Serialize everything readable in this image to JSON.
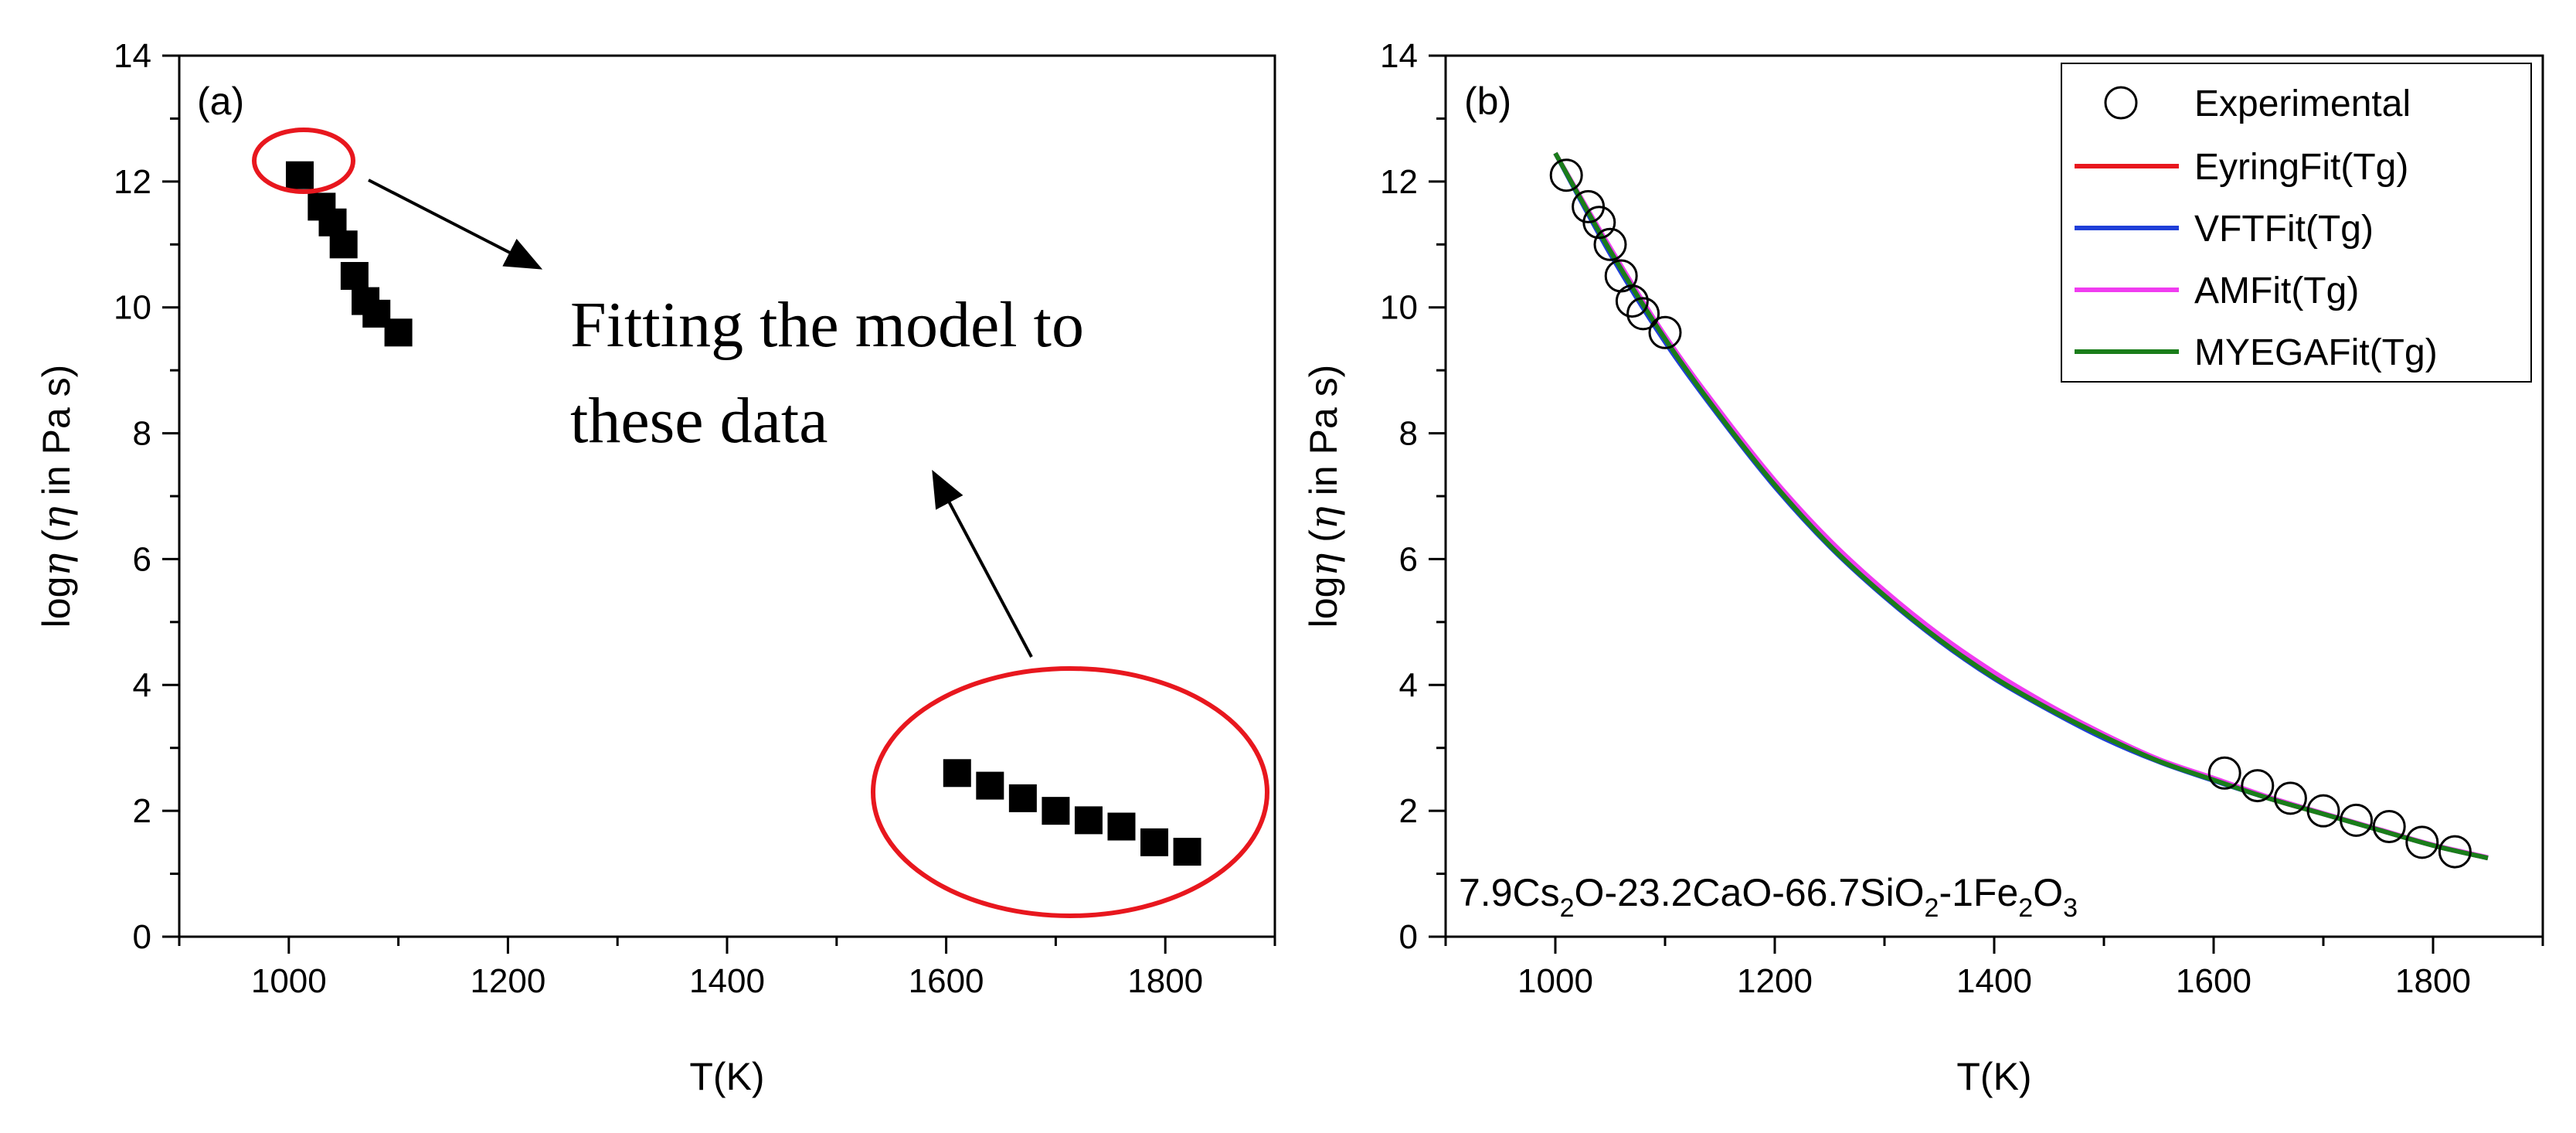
{
  "chart_data": [
    {
      "type": "scatter",
      "panel_label": "(a)",
      "xlabel": "T(K)",
      "ylabel_prefix": "log",
      "ylabel_eta": "η",
      "ylabel_paren_open": " (",
      "ylabel_suffix": " in Pa s)",
      "xlim": [
        900,
        1900
      ],
      "ylim": [
        0,
        14
      ],
      "xticks": [
        1000,
        1200,
        1400,
        1600,
        1800
      ],
      "yticks": [
        0,
        2,
        4,
        6,
        8,
        10,
        12,
        14
      ],
      "grid": false,
      "series": [
        {
          "marker": "filled-square",
          "color": "#000000",
          "x": [
            1010,
            1030,
            1040,
            1050,
            1060,
            1070,
            1080,
            1100,
            1610,
            1640,
            1670,
            1700,
            1730,
            1760,
            1790,
            1820
          ],
          "y": [
            12.1,
            11.6,
            11.35,
            11.0,
            10.5,
            10.1,
            9.9,
            9.6,
            2.6,
            2.4,
            2.2,
            2.0,
            1.85,
            1.75,
            1.5,
            1.35
          ]
        }
      ],
      "annotation": {
        "line1": "Fitting the model to",
        "line2": "these data",
        "highlight_color": "#e8171e"
      }
    },
    {
      "type": "line",
      "panel_label": "(b)",
      "xlabel": "T(K)",
      "ylabel_prefix": "log",
      "ylabel_eta": "η",
      "ylabel_paren_open": " (",
      "ylabel_suffix": " in Pa s)",
      "xlim": [
        900,
        1900
      ],
      "ylim": [
        0,
        14
      ],
      "xticks": [
        1000,
        1200,
        1400,
        1600,
        1800
      ],
      "yticks": [
        0,
        2,
        4,
        6,
        8,
        10,
        12,
        14
      ],
      "grid": false,
      "legend_position": "top-right",
      "experimental": {
        "name": "Experimental",
        "marker": "open-circle",
        "x": [
          1010,
          1030,
          1040,
          1050,
          1060,
          1070,
          1080,
          1100,
          1610,
          1640,
          1670,
          1700,
          1730,
          1760,
          1790,
          1820
        ],
        "y": [
          12.1,
          11.6,
          11.35,
          11.0,
          10.5,
          10.1,
          9.9,
          9.6,
          2.6,
          2.4,
          2.2,
          2.0,
          1.85,
          1.75,
          1.5,
          1.35
        ]
      },
      "series": [
        {
          "name": "EyringFit(Tg)",
          "color": "#e8171e",
          "x": [
            1000,
            1050,
            1100,
            1150,
            1200,
            1250,
            1300,
            1350,
            1400,
            1450,
            1500,
            1550,
            1600,
            1650,
            1700,
            1750,
            1800,
            1850
          ],
          "y": [
            12.45,
            10.9,
            9.5,
            8.3,
            7.2,
            6.25,
            5.45,
            4.75,
            4.15,
            3.65,
            3.2,
            2.8,
            2.5,
            2.2,
            1.95,
            1.7,
            1.45,
            1.25
          ]
        },
        {
          "name": "VFTFit(Tg)",
          "color": "#1f3fd8",
          "x": [
            1000,
            1050,
            1100,
            1150,
            1200,
            1250,
            1300,
            1350,
            1400,
            1450,
            1500,
            1550,
            1600,
            1650,
            1700,
            1750,
            1800,
            1850
          ],
          "y": [
            12.45,
            10.85,
            9.45,
            8.25,
            7.15,
            6.2,
            5.4,
            4.7,
            4.1,
            3.6,
            3.15,
            2.78,
            2.48,
            2.2,
            1.95,
            1.7,
            1.45,
            1.25
          ]
        },
        {
          "name": "AMFit(Tg)",
          "color": "#f03cf0",
          "x": [
            1000,
            1050,
            1100,
            1150,
            1200,
            1250,
            1300,
            1350,
            1400,
            1450,
            1500,
            1550,
            1600,
            1650,
            1700,
            1750,
            1800,
            1850
          ],
          "y": [
            12.45,
            10.95,
            9.55,
            8.35,
            7.25,
            6.3,
            5.5,
            4.8,
            4.2,
            3.68,
            3.22,
            2.82,
            2.52,
            2.22,
            1.96,
            1.71,
            1.46,
            1.26
          ]
        },
        {
          "name": "MYEGAFit(Tg)",
          "color": "#1a7d1a",
          "x": [
            1000,
            1050,
            1100,
            1150,
            1200,
            1250,
            1300,
            1350,
            1400,
            1450,
            1500,
            1550,
            1600,
            1650,
            1700,
            1750,
            1800,
            1850
          ],
          "y": [
            12.45,
            10.9,
            9.5,
            8.28,
            7.18,
            6.22,
            5.42,
            4.72,
            4.12,
            3.62,
            3.18,
            2.79,
            2.49,
            2.2,
            1.95,
            1.7,
            1.45,
            1.25
          ]
        }
      ],
      "composition_label": {
        "p1": "7.9Cs",
        "s1": "2",
        "p2": "O-23.2CaO-66.7SiO",
        "s2": "2",
        "p3": "-1Fe",
        "s3": "2",
        "p4": "O",
        "s4": "3"
      }
    }
  ]
}
